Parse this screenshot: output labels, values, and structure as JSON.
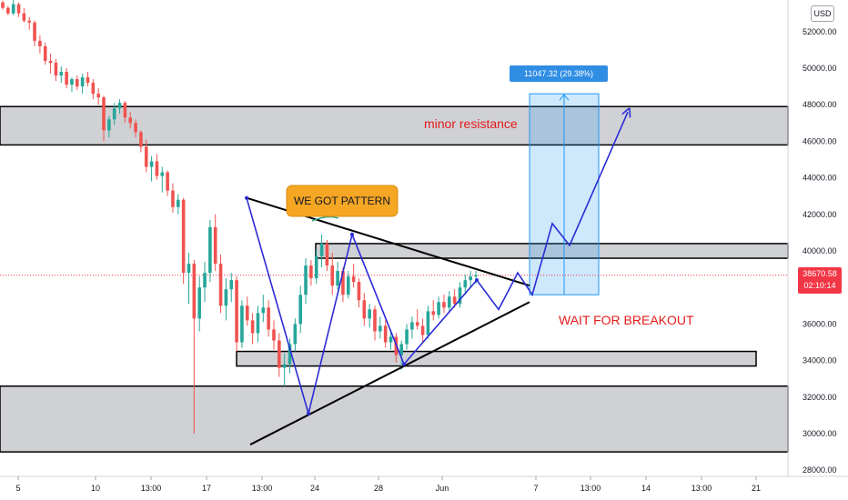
{
  "chart_data": {
    "type": "candlestick",
    "currency": "USD",
    "y_axis": {
      "ticks": [
        28000,
        30000,
        32000,
        34000,
        36000,
        38000,
        40000,
        42000,
        44000,
        46000,
        48000,
        50000,
        52000
      ],
      "tick_labels": [
        "28000.00",
        "30000.00",
        "32000.00",
        "34000.00",
        "36000.00",
        "38000.00",
        "40000.00",
        "42000.00",
        "44000.00",
        "46000.00",
        "48000.00",
        "50000.00",
        "52000.00"
      ],
      "range": [
        27500,
        53200
      ]
    },
    "x_axis": {
      "tick_labels": [
        "5",
        "10",
        "13:00",
        "17",
        "13:00",
        "24",
        "28",
        "Jun",
        "7",
        "13:00",
        "14",
        "13:00",
        "21"
      ]
    },
    "last_price": "38670.58",
    "countdown": "02:10:14",
    "measure_label": "11047.32 (29.38%) 1104732",
    "annotations": {
      "pattern": "WE GOT PATTERN",
      "resistance": "minor resistance",
      "breakout": "WAIT FOR BREAKOUT"
    },
    "zones": [
      {
        "from": 45800,
        "to": 47900
      },
      {
        "from": 39600,
        "to": 40400
      },
      {
        "from": 33700,
        "to": 34500
      },
      {
        "from": 29000,
        "to": 32600
      }
    ],
    "triangle_upper": [
      [
        42900,
        40300
      ],
      [
        38100,
        37600
      ]
    ],
    "triangle_lower": [
      [
        29400,
        33800
      ],
      [
        37200,
        37500
      ]
    ],
    "wave_path": [
      42900,
      31100,
      40900,
      33800,
      38400,
      36800,
      38800,
      37600,
      41500,
      40300,
      47600
    ],
    "measure_range": [
      37600,
      48600
    ],
    "candles": [
      [
        53600,
        53700,
        53200,
        53300
      ],
      [
        53300,
        53400,
        52900,
        53000
      ],
      [
        53000,
        53800,
        52900,
        53500
      ],
      [
        53500,
        53600,
        52800,
        53000
      ],
      [
        53000,
        53300,
        52500,
        52600
      ],
      [
        52600,
        52800,
        52100,
        52500
      ],
      [
        52500,
        52600,
        51200,
        51500
      ],
      [
        51500,
        51800,
        50800,
        51200
      ],
      [
        51200,
        51400,
        50200,
        50400
      ],
      [
        50400,
        50800,
        49700,
        50300
      ],
      [
        50300,
        50500,
        49300,
        49600
      ],
      [
        49600,
        50100,
        49200,
        49800
      ],
      [
        49800,
        50000,
        48900,
        49100
      ],
      [
        49100,
        49500,
        48700,
        49400
      ],
      [
        49400,
        49600,
        48800,
        49000
      ],
      [
        49000,
        49700,
        48600,
        49500
      ],
      [
        49500,
        49800,
        49000,
        49200
      ],
      [
        49200,
        49400,
        48300,
        48600
      ],
      [
        48600,
        48900,
        48000,
        48400
      ],
      [
        48400,
        48500,
        46000,
        46600
      ],
      [
        46600,
        47400,
        46200,
        47200
      ],
      [
        47200,
        48100,
        46900,
        47800
      ],
      [
        47800,
        48300,
        47500,
        48100
      ],
      [
        48100,
        48200,
        47000,
        47300
      ],
      [
        47300,
        47600,
        46700,
        47000
      ],
      [
        47000,
        47200,
        46200,
        46500
      ],
      [
        46500,
        46600,
        45400,
        45700
      ],
      [
        45700,
        46100,
        44300,
        44600
      ],
      [
        44600,
        45200,
        43800,
        44900
      ],
      [
        44900,
        45300,
        43900,
        44100
      ],
      [
        44100,
        44600,
        43200,
        44300
      ],
      [
        44300,
        44400,
        43000,
        43300
      ],
      [
        43300,
        43700,
        42100,
        42400
      ],
      [
        42400,
        43100,
        42000,
        42800
      ],
      [
        42800,
        42900,
        38200,
        38800
      ],
      [
        38800,
        39900,
        37100,
        39300
      ],
      [
        39300,
        39500,
        30000,
        36300
      ],
      [
        36300,
        38600,
        35600,
        38000
      ],
      [
        38000,
        39400,
        37200,
        38800
      ],
      [
        38800,
        41700,
        38300,
        41300
      ],
      [
        41300,
        42000,
        38900,
        39300
      ],
      [
        39300,
        39800,
        36600,
        37000
      ],
      [
        37000,
        38500,
        36200,
        37900
      ],
      [
        37900,
        38800,
        37200,
        38400
      ],
      [
        38400,
        38600,
        34500,
        35000
      ],
      [
        35000,
        37300,
        34700,
        37000
      ],
      [
        37000,
        37500,
        35900,
        36200
      ],
      [
        36200,
        36600,
        34900,
        35500
      ],
      [
        35500,
        37000,
        35000,
        36600
      ],
      [
        36600,
        37600,
        36100,
        36900
      ],
      [
        36900,
        37300,
        35300,
        35700
      ],
      [
        35700,
        36200,
        34600,
        35100
      ],
      [
        35100,
        35500,
        33100,
        33600
      ],
      [
        33600,
        34400,
        32600,
        33800
      ],
      [
        33800,
        35200,
        33300,
        34900
      ],
      [
        34900,
        36300,
        34500,
        36000
      ],
      [
        36000,
        38100,
        35500,
        37600
      ],
      [
        37600,
        39600,
        37100,
        39200
      ],
      [
        39200,
        39500,
        38100,
        38500
      ],
      [
        38500,
        40100,
        38200,
        39700
      ],
      [
        39700,
        40900,
        39100,
        40400
      ],
      [
        40400,
        40600,
        38900,
        39200
      ],
      [
        39200,
        39900,
        37600,
        38100
      ],
      [
        38100,
        39400,
        37900,
        38900
      ],
      [
        38900,
        39100,
        37200,
        37600
      ],
      [
        37600,
        38900,
        37400,
        38600
      ],
      [
        38600,
        39300,
        38000,
        38300
      ],
      [
        38300,
        38500,
        36900,
        37300
      ],
      [
        37300,
        37700,
        35900,
        36300
      ],
      [
        36300,
        37100,
        35800,
        36800
      ],
      [
        36800,
        37000,
        35100,
        35600
      ],
      [
        35600,
        36400,
        35200,
        35900
      ],
      [
        35900,
        36200,
        34700,
        35000
      ],
      [
        35000,
        35700,
        34600,
        35300
      ],
      [
        35300,
        35500,
        33900,
        34300
      ],
      [
        34300,
        35100,
        33500,
        34900
      ],
      [
        34900,
        36000,
        34600,
        35700
      ],
      [
        35700,
        36400,
        35200,
        36100
      ],
      [
        36100,
        36800,
        35700,
        35900
      ],
      [
        35900,
        36300,
        35000,
        35400
      ],
      [
        35400,
        37000,
        35200,
        36700
      ],
      [
        36700,
        37300,
        36200,
        36500
      ],
      [
        36500,
        37500,
        36300,
        37200
      ],
      [
        37200,
        37600,
        36600,
        36900
      ],
      [
        36900,
        37800,
        36700,
        37500
      ],
      [
        37500,
        37900,
        36900,
        37100
      ],
      [
        37100,
        38300,
        36900,
        38000
      ],
      [
        38000,
        38700,
        37600,
        38400
      ],
      [
        38400,
        38900,
        38000,
        38600
      ],
      [
        38600,
        38900,
        38200,
        38670
      ]
    ]
  }
}
